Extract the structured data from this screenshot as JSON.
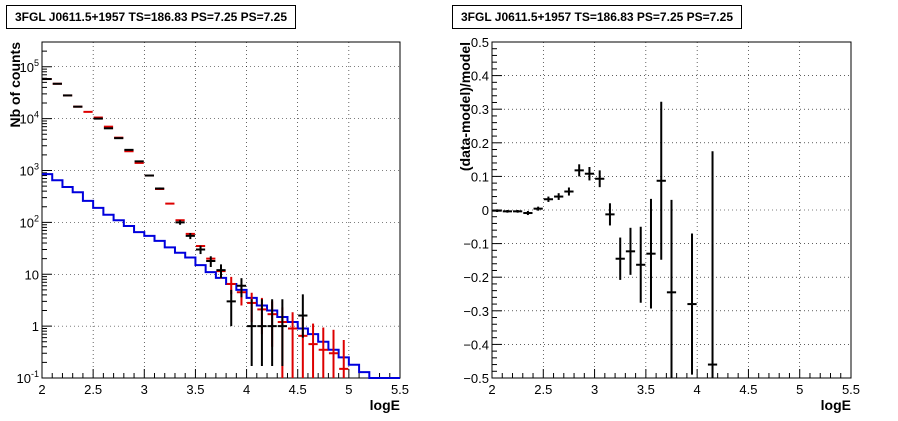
{
  "pad_titles": {
    "left": "3FGL J0611.5+1957 TS=186.83 PS=7.25 PS=7.25",
    "right": "3FGL J0611.5+1957 TS=186.83 PS=7.25 PS=7.25"
  },
  "chart_data": [
    {
      "type": "step",
      "title": "3FGL J0611.5+1957 TS=186.83 PS=7.25 PS=7.25",
      "xlabel": "logE",
      "ylabel": "Nb of counts",
      "xlim": [
        2,
        5.5
      ],
      "ylim": [
        0.1,
        300000
      ],
      "yscale": "log",
      "grid": true,
      "xticks": [
        "2",
        "2.5",
        "3",
        "3.5",
        "4",
        "4.5",
        "5",
        "5.5"
      ],
      "yticks": [
        "10^-1",
        "1",
        "10",
        "10^2",
        "10^3",
        "10^4",
        "10^5"
      ],
      "bin_width": 0.1,
      "x": [
        2.05,
        2.15,
        2.25,
        2.35,
        2.45,
        2.55,
        2.65,
        2.75,
        2.85,
        2.95,
        3.05,
        3.15,
        3.25,
        3.35,
        3.45,
        3.55,
        3.65,
        3.75,
        3.85,
        3.95,
        4.05,
        4.15,
        4.25,
        4.35,
        4.45,
        4.55,
        4.65,
        4.75,
        4.85,
        4.95,
        5.05,
        5.15,
        5.25,
        5.35,
        5.45
      ],
      "series": [
        {
          "color": "#000000",
          "style": "data-points",
          "values": [
            58000,
            47000,
            28000,
            17000,
            0,
            10000,
            6500,
            4200,
            2500,
            1500,
            800,
            450,
            0,
            100,
            55,
            30,
            18,
            12,
            3,
            6,
            1,
            1,
            1,
            1,
            0,
            1.6,
            0,
            0,
            0,
            0,
            0,
            0,
            0,
            0,
            0
          ],
          "err_low": [
            240,
            215,
            165,
            130,
            0,
            100,
            80,
            65,
            50,
            38,
            28,
            21,
            0,
            10,
            7.4,
            5.5,
            4.2,
            3.5,
            2.0,
            2.4,
            0.83,
            0.83,
            0.83,
            0.83,
            0,
            1.0,
            0,
            0,
            0,
            0,
            0,
            0,
            0,
            0,
            0
          ],
          "err_high": [
            240,
            215,
            165,
            130,
            0,
            100,
            80,
            65,
            50,
            38,
            28,
            21,
            0,
            10,
            7.4,
            5.5,
            4.2,
            3.5,
            2.0,
            2.4,
            2.3,
            2.3,
            2.3,
            2.3,
            0,
            2.5,
            0,
            0,
            0,
            0,
            0,
            0,
            0,
            0,
            0
          ]
        },
        {
          "color": "#dd0000",
          "style": "model-markers",
          "values": [
            58000,
            47000,
            28000,
            17000,
            13500,
            10500,
            7000,
            4300,
            2350,
            1400,
            800,
            440,
            230,
            110,
            60,
            35,
            20,
            11.5,
            6.5,
            4.5,
            2.8,
            2.1,
            1.7,
            1.2,
            0.9,
            0.65,
            0.45,
            0.35,
            0.3,
            0.15,
            0,
            0,
            0,
            0,
            0
          ],
          "err_low": [
            0,
            0,
            0,
            0,
            0,
            0,
            0,
            0,
            0,
            0,
            0,
            0,
            0,
            0,
            0,
            0,
            0,
            3.2,
            2.4,
            2.0,
            1.6,
            1.4,
            1.3,
            1.1,
            0.95,
            0.8,
            0.67,
            0.59,
            0.55,
            0.39,
            0,
            0,
            0,
            0,
            0
          ],
          "err_high": [
            0,
            0,
            0,
            0,
            0,
            0,
            0,
            0,
            0,
            0,
            0,
            0,
            0,
            0,
            0,
            0,
            0,
            3.2,
            2.4,
            2.0,
            1.6,
            1.4,
            1.3,
            1.1,
            0.95,
            0.8,
            0.67,
            0.59,
            0.55,
            0.39,
            0,
            0,
            0,
            0,
            0
          ]
        },
        {
          "color": "#0000dd",
          "style": "histogram",
          "values": [
            850,
            650,
            480,
            380,
            260,
            190,
            140,
            110,
            85,
            65,
            55,
            44,
            33,
            26,
            21,
            15,
            11,
            8.5,
            6.5,
            5,
            3.5,
            2.5,
            2.0,
            1.5,
            1.2,
            0.9,
            0.7,
            0.5,
            0.35,
            0.25,
            0.18,
            0.13,
            0.1,
            0.1,
            0.1
          ]
        }
      ]
    },
    {
      "type": "scatter",
      "title": "3FGL J0611.5+1957 TS=186.83 PS=7.25 PS=7.25",
      "xlabel": "logE",
      "ylabel": "(data-model)/model",
      "xlim": [
        2,
        5.5
      ],
      "ylim": [
        -0.5,
        0.5
      ],
      "grid": true,
      "xticks": [
        "2",
        "2.5",
        "3",
        "3.5",
        "4",
        "4.5",
        "5",
        "5.5"
      ],
      "yticks": [
        "−0.5",
        "−0.4",
        "−0.3",
        "−0.2",
        "−0.1",
        "0",
        "0.1",
        "0.2",
        "0.3",
        "0.4",
        "0.5"
      ],
      "bin_width": 0.1,
      "x": [
        2.05,
        2.15,
        2.25,
        2.35,
        2.45,
        2.55,
        2.65,
        2.75,
        2.85,
        2.95,
        3.05,
        3.15,
        3.25,
        3.35,
        3.45,
        3.55,
        3.65,
        3.75,
        3.95,
        4.15
      ],
      "y": [
        -0.002,
        -0.004,
        -0.004,
        -0.009,
        0.004,
        0.032,
        0.04,
        0.055,
        0.118,
        0.108,
        0.093,
        -0.013,
        -0.145,
        -0.123,
        -0.163,
        -0.13,
        0.087,
        -0.245,
        -0.28,
        -0.46
      ],
      "err": [
        0.004,
        0.004,
        0.004,
        0.006,
        0.006,
        0.008,
        0.01,
        0.012,
        0.018,
        0.02,
        0.025,
        0.033,
        0.063,
        0.07,
        0.113,
        0.163,
        0.235,
        0.275,
        0.21,
        0.635
      ]
    }
  ]
}
